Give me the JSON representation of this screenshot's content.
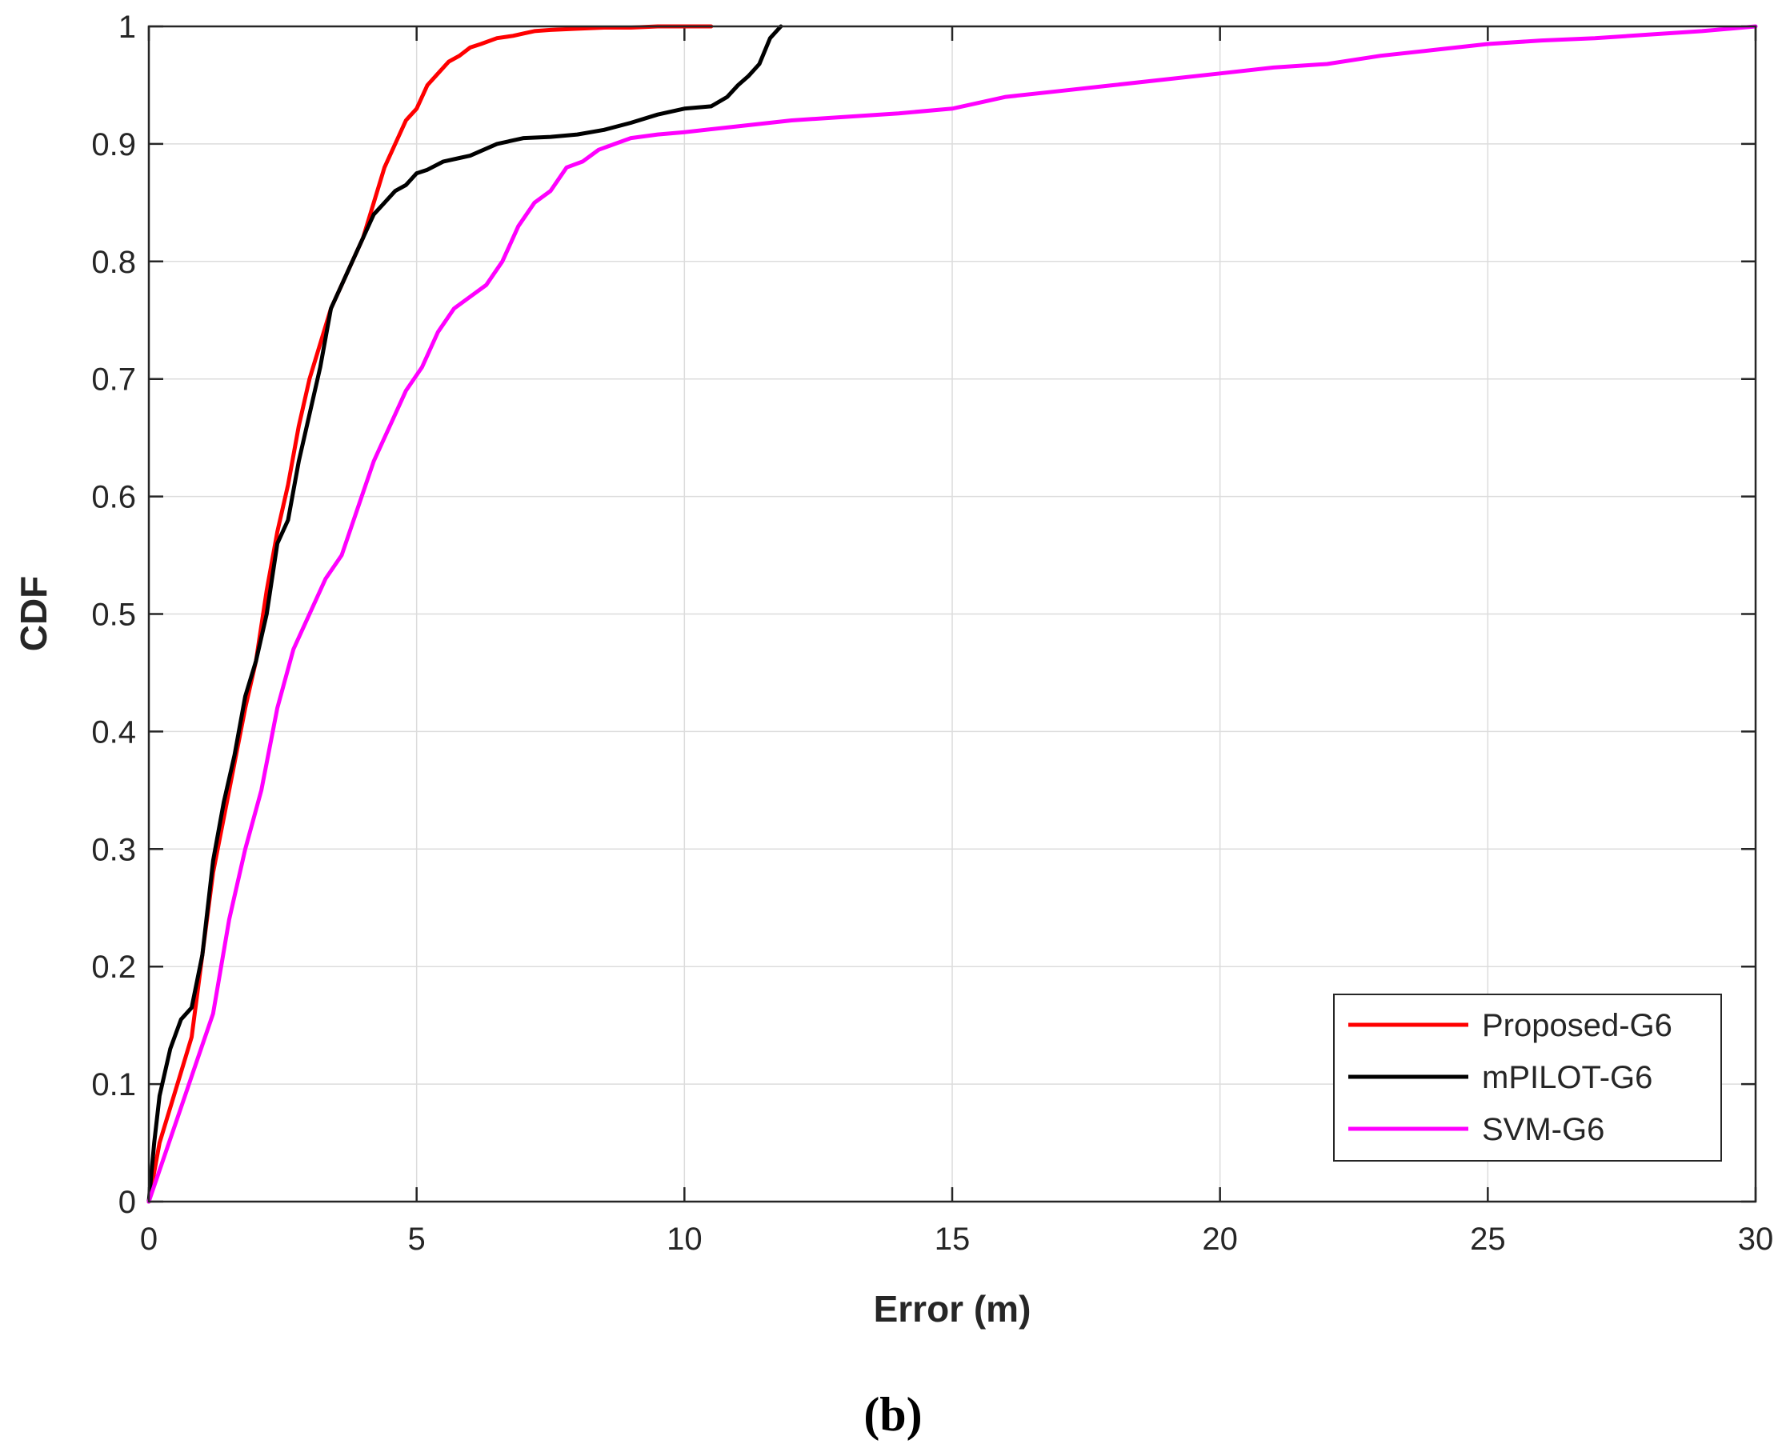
{
  "chart_data": {
    "type": "line",
    "title": "",
    "xlabel": "Error (m)",
    "ylabel": "CDF",
    "caption": "(b)",
    "xlim": [
      0,
      30
    ],
    "ylim": [
      0,
      1
    ],
    "xticks": [
      "0",
      "5",
      "10",
      "15",
      "20",
      "25",
      "30"
    ],
    "yticks": [
      "0",
      "0.1",
      "0.2",
      "0.3",
      "0.4",
      "0.5",
      "0.6",
      "0.7",
      "0.8",
      "0.9",
      "1"
    ],
    "grid": true,
    "legend_position": "bottom-right",
    "series": [
      {
        "name": "Proposed-G6",
        "color": "#ff0000",
        "x": [
          0,
          0.2,
          0.4,
          0.6,
          0.8,
          1.0,
          1.2,
          1.5,
          1.8,
          2.0,
          2.2,
          2.4,
          2.6,
          2.8,
          3.0,
          3.2,
          3.4,
          3.6,
          3.8,
          4.0,
          4.2,
          4.4,
          4.6,
          4.8,
          5.0,
          5.2,
          5.4,
          5.6,
          5.8,
          6.0,
          6.2,
          6.5,
          6.8,
          7.0,
          7.2,
          7.5,
          8.0,
          8.5,
          9.0,
          9.5,
          10.0,
          10.5
        ],
        "y": [
          0,
          0.05,
          0.08,
          0.11,
          0.14,
          0.21,
          0.28,
          0.35,
          0.42,
          0.46,
          0.52,
          0.57,
          0.61,
          0.66,
          0.7,
          0.73,
          0.76,
          0.78,
          0.8,
          0.82,
          0.85,
          0.88,
          0.9,
          0.92,
          0.93,
          0.95,
          0.96,
          0.97,
          0.975,
          0.982,
          0.985,
          0.99,
          0.992,
          0.994,
          0.996,
          0.997,
          0.998,
          0.999,
          0.999,
          1.0,
          1.0,
          1.0
        ]
      },
      {
        "name": "mPILOT-G6",
        "color": "#000000",
        "x": [
          0,
          0.1,
          0.2,
          0.4,
          0.6,
          0.8,
          1.0,
          1.2,
          1.4,
          1.6,
          1.8,
          2.0,
          2.2,
          2.4,
          2.6,
          2.8,
          3.0,
          3.2,
          3.4,
          3.6,
          3.8,
          4.0,
          4.2,
          4.4,
          4.6,
          4.8,
          5.0,
          5.2,
          5.5,
          5.8,
          6.0,
          6.5,
          7.0,
          7.5,
          8.0,
          8.5,
          9.0,
          9.5,
          10.0,
          10.5,
          10.8,
          11.0,
          11.2,
          11.4,
          11.6,
          11.8
        ],
        "y": [
          0,
          0.05,
          0.09,
          0.13,
          0.155,
          0.165,
          0.21,
          0.29,
          0.34,
          0.38,
          0.43,
          0.46,
          0.5,
          0.56,
          0.58,
          0.63,
          0.67,
          0.71,
          0.76,
          0.78,
          0.8,
          0.82,
          0.84,
          0.85,
          0.86,
          0.865,
          0.875,
          0.878,
          0.885,
          0.888,
          0.89,
          0.9,
          0.905,
          0.906,
          0.908,
          0.912,
          0.918,
          0.925,
          0.93,
          0.932,
          0.94,
          0.95,
          0.958,
          0.968,
          0.99,
          1.0
        ]
      },
      {
        "name": "SVM-G6",
        "color": "#ff00ff",
        "x": [
          0,
          0.3,
          0.6,
          0.9,
          1.2,
          1.5,
          1.8,
          2.1,
          2.4,
          2.7,
          3.0,
          3.3,
          3.6,
          3.9,
          4.2,
          4.5,
          4.8,
          5.1,
          5.4,
          5.7,
          6.0,
          6.3,
          6.6,
          6.9,
          7.2,
          7.5,
          7.8,
          8.1,
          8.4,
          8.7,
          9.0,
          9.5,
          10.0,
          11.0,
          12.0,
          13.0,
          14.0,
          15.0,
          16.0,
          17.0,
          18.0,
          19.0,
          20.0,
          21.0,
          22.0,
          23.0,
          24.0,
          25.0,
          26.0,
          27.0,
          28.0,
          29.0,
          30.0
        ],
        "y": [
          0,
          0.04,
          0.08,
          0.12,
          0.16,
          0.24,
          0.3,
          0.35,
          0.42,
          0.47,
          0.5,
          0.53,
          0.55,
          0.59,
          0.63,
          0.66,
          0.69,
          0.71,
          0.74,
          0.76,
          0.77,
          0.78,
          0.8,
          0.83,
          0.85,
          0.86,
          0.88,
          0.885,
          0.895,
          0.9,
          0.905,
          0.908,
          0.91,
          0.915,
          0.92,
          0.923,
          0.926,
          0.93,
          0.94,
          0.945,
          0.95,
          0.955,
          0.96,
          0.965,
          0.968,
          0.975,
          0.98,
          0.985,
          0.988,
          0.99,
          0.993,
          0.996,
          1.0
        ]
      }
    ]
  }
}
